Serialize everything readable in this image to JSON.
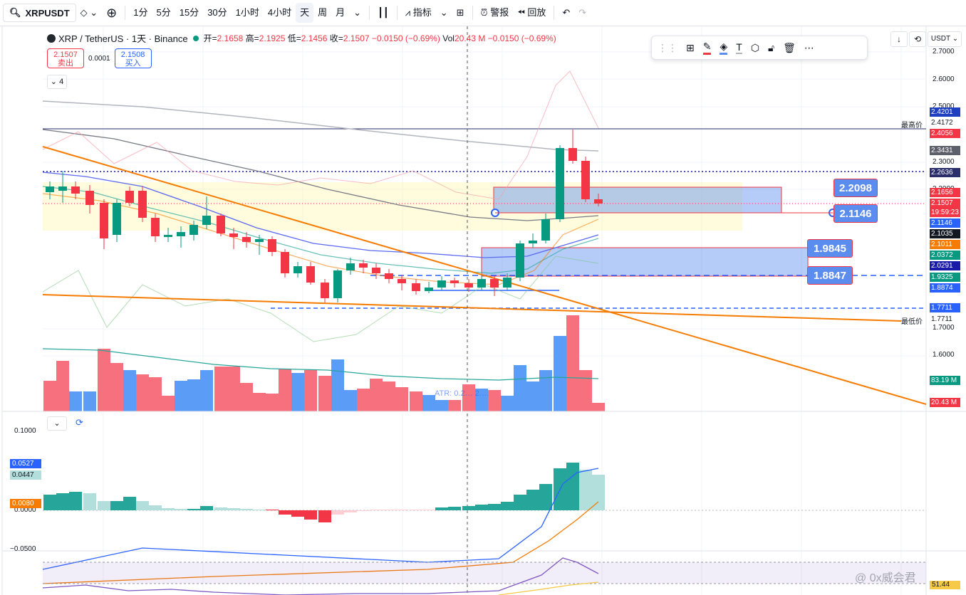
{
  "toolbar": {
    "symbol": "XRPUSDT",
    "intervals": [
      "1分",
      "5分",
      "15分",
      "30分",
      "1小时",
      "4小时",
      "天",
      "周",
      "月"
    ],
    "active_interval": "天",
    "indicators_label": "指标",
    "alert_label": "警报",
    "replay_label": "回放"
  },
  "legend": {
    "title": "XRP / TetherUS · 1天 · Binance",
    "open_k": "开=",
    "open": "2.1658",
    "high_k": "高=",
    "high": "2.1925",
    "low_k": "低=",
    "low": "2.1456",
    "close_k": "收=",
    "close": "2.1507",
    "change": "−0.0150 (−0.69%)",
    "vol_k": "Vol",
    "vol": "20.43 M",
    "vol_change": "−0.0150 (−0.69%)"
  },
  "bidask": {
    "sell_price": "2.1507",
    "sell_label": "卖出",
    "spread": "0.0001",
    "buy_price": "2.1508",
    "buy_label": "买入"
  },
  "collapse_count": "4",
  "currency": "USDT",
  "price_axis": [
    "2.7000",
    "2.6000",
    "2.5000",
    "2.3000",
    "2.2000",
    "1.7000",
    "1.6000"
  ],
  "price_tags": [
    {
      "value": "2.4201",
      "bg": "#1e3fbf"
    },
    {
      "value": "2.4172",
      "bg": "#ffffff"
    },
    {
      "value": "2.4056",
      "bg": "#f23645"
    },
    {
      "value": "2.3431",
      "bg": "#5d606b"
    },
    {
      "value": "2.2636",
      "bg": "#2a2e6b"
    },
    {
      "value": "2.1656",
      "bg": "#f23645"
    },
    {
      "value": "2.1507",
      "bg": "#f23645"
    },
    {
      "value": "19:59:23",
      "bg": "#f23645"
    },
    {
      "value": "2.1146",
      "bg": "#2962ff"
    },
    {
      "value": "2.1035",
      "bg": "#131722"
    },
    {
      "value": "2.1011",
      "bg": "#f57c00"
    },
    {
      "value": "2.0372",
      "bg": "#089981"
    },
    {
      "value": "2.0291",
      "bg": "#1a1aa8"
    },
    {
      "value": "1.9325",
      "bg": "#089981"
    },
    {
      "value": "1.8874",
      "bg": "#2962ff"
    },
    {
      "value": "1.7711",
      "bg": "#2962ff"
    },
    {
      "value": "1.7711",
      "bg": "#ffffff"
    },
    {
      "value": "83.19 M",
      "bg": "#089981"
    },
    {
      "value": "20.43 M",
      "bg": "#f23645"
    }
  ],
  "tag_notes": {
    "high": "最高价",
    "low": "最低价"
  },
  "callouts": [
    "2.2098",
    "2.1146",
    "1.9845",
    "1.8847"
  ],
  "atr_text": "ATR: 0.2… 2.…",
  "macd": {
    "axis": [
      "0.1000",
      "0.0000",
      "−0.0500"
    ],
    "tags": [
      {
        "value": "0.0527",
        "bg": "#2962ff"
      },
      {
        "value": "0.0447",
        "bg": "#b2dfdb"
      },
      {
        "value": "0.0080",
        "bg": "#f57c00"
      }
    ]
  },
  "rsi_tag": "51.44",
  "watermark": "@ 0x威会君"
}
